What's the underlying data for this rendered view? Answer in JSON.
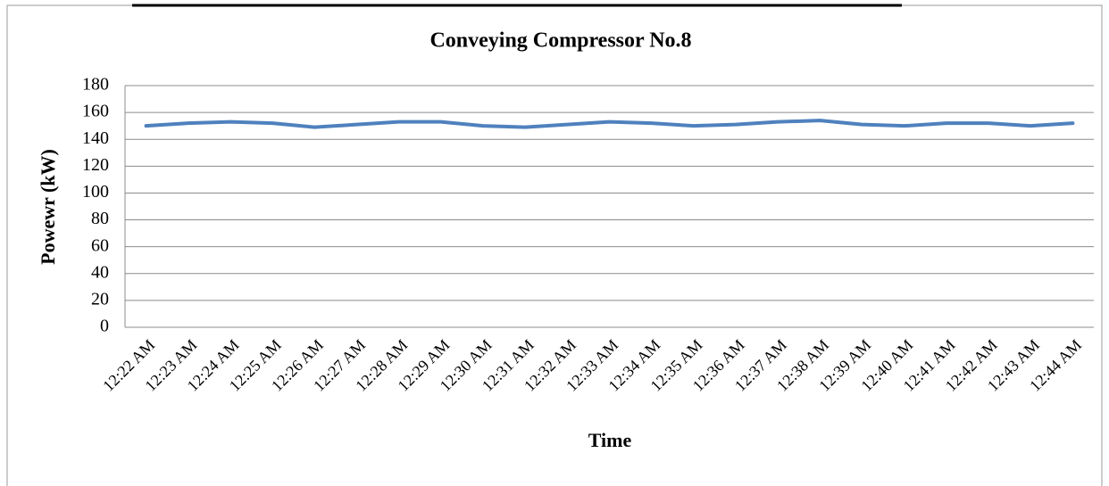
{
  "chart_data": {
    "type": "line",
    "title": "Conveying  Compressor  No.8",
    "x_label": "Time",
    "y_label": "Powewr (kW)",
    "categories": [
      "12:22 AM",
      "12:23 AM",
      "12:24 AM",
      "12:25 AM",
      "12:26 AM",
      "12:27 AM",
      "12:28 AM",
      "12:29 AM",
      "12:30 AM",
      "12:31 AM",
      "12:32 AM",
      "12:33 AM",
      "12:34 AM",
      "12:35 AM",
      "12:36 AM",
      "12:37 AM",
      "12:38 AM",
      "12:39 AM",
      "12:40 AM",
      "12:41 AM",
      "12:42 AM",
      "12:43 AM",
      "12:44 AM"
    ],
    "values": [
      150,
      152,
      153,
      152,
      149,
      151,
      153,
      153,
      150,
      149,
      151,
      153,
      152,
      150,
      151,
      153,
      154,
      151,
      150,
      152,
      152,
      150,
      152
    ],
    "color": "#4f81bd",
    "ylim": [
      0,
      180
    ],
    "yticks": [
      0,
      20,
      40,
      60,
      80,
      100,
      120,
      140,
      160,
      180
    ],
    "grid": true
  }
}
